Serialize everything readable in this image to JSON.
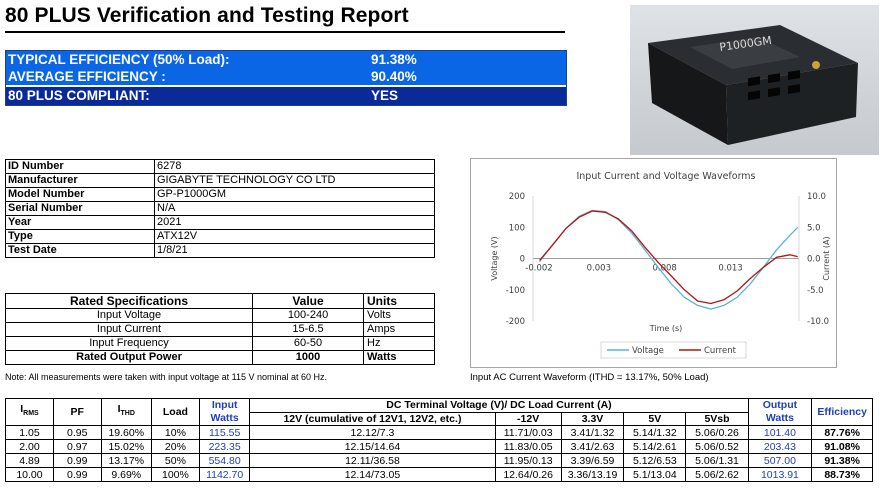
{
  "title": "80 PLUS Verification and Testing Report",
  "summary": {
    "typical_label": "TYPICAL EFFICIENCY (50% Load):",
    "typical_value": "91.38%",
    "average_label": "AVERAGE EFFICIENCY :",
    "average_value": "90.40%",
    "compliant_label": "80 PLUS COMPLIANT:",
    "compliant_value": "YES",
    "colors": {
      "light_blue": "#0b66e6",
      "dark_blue": "#0a2a9a"
    }
  },
  "photo": {
    "icon": "psu-photo",
    "brand_text": "P1000GM"
  },
  "info": [
    {
      "key": "ID Number",
      "value": "6278"
    },
    {
      "key": "Manufacturer",
      "value": "GIGABYTE TECHNOLOGY CO LTD"
    },
    {
      "key": "Model Number",
      "value": "GP-P1000GM"
    },
    {
      "key": "Serial Number",
      "value": "N/A"
    },
    {
      "key": "Year",
      "value": "2021"
    },
    {
      "key": "Type",
      "value": "ATX12V"
    },
    {
      "key": "Test Date",
      "value": "1/8/21"
    }
  ],
  "rated": {
    "headers": [
      "Rated Specifications",
      "Value",
      "Units"
    ],
    "rows": [
      {
        "spec": "Input Voltage",
        "value": "100-240",
        "unit": "Volts"
      },
      {
        "spec": "Input Current",
        "value": "15-6.5",
        "unit": "Amps"
      },
      {
        "spec": "Input Frequency",
        "value": "60-50",
        "unit": "Hz"
      },
      {
        "spec": "Rated Output Power",
        "value": "1000",
        "unit": "Watts"
      }
    ]
  },
  "note": "Note: All measurements were taken with input voltage at 115 V nominal at 60 Hz.",
  "chart_caption": "Input AC Current Waveform (ITHD = 13.17%, 50% Load)",
  "chart_data": {
    "type": "line",
    "title": "Input Current and Voltage Waveforms",
    "xlabel": "Time (s)",
    "ylabel": "Voltage (V)",
    "y2label": "Current (A)",
    "xlim": [
      -0.002,
      0.0182
    ],
    "ylim": [
      -200,
      200
    ],
    "y2lim": [
      -10,
      10
    ],
    "x_ticks": [
      "-0.002",
      "0.003",
      "0.008",
      "0.013"
    ],
    "x_tick_values": [
      -0.002,
      0.003,
      0.008,
      0.013
    ],
    "y_ticks": [
      200,
      100,
      0,
      -100,
      -200
    ],
    "y2_ticks": [
      "10.0",
      "5.0",
      "0.0",
      "-5.0",
      "-10.0"
    ],
    "y2_tick_values": [
      10,
      5,
      0,
      -5,
      -10
    ],
    "legend_position": "bottom",
    "series": [
      {
        "name": "Voltage",
        "color": "#5ab4d6",
        "axis": "left",
        "x": [
          -0.0015,
          -0.0005,
          0.0005,
          0.0015,
          0.0025,
          0.0035,
          0.0045,
          0.0055,
          0.0065,
          0.0075,
          0.0085,
          0.0095,
          0.0105,
          0.0115,
          0.0125,
          0.0135,
          0.0145,
          0.0155,
          0.0165,
          0.0175,
          0.0181
        ],
        "y": [
          -10,
          45,
          96,
          135,
          154,
          150,
          124,
          81,
          28,
          -28,
          -81,
          -124,
          -150,
          -162,
          -150,
          -124,
          -81,
          -28,
          28,
          74,
          100
        ]
      },
      {
        "name": "Current",
        "color": "#b01616",
        "axis": "right",
        "x": [
          -0.0015,
          -0.0005,
          0.0005,
          0.0015,
          0.0025,
          0.0035,
          0.0045,
          0.0055,
          0.0065,
          0.0075,
          0.0085,
          0.0095,
          0.0105,
          0.0115,
          0.0125,
          0.0135,
          0.0145,
          0.0155,
          0.0165,
          0.0175,
          0.0181
        ],
        "y": [
          -0.3,
          2.2,
          4.8,
          6.6,
          7.6,
          7.4,
          6.3,
          4.4,
          1.8,
          -0.6,
          -2.8,
          -5.0,
          -6.8,
          -7.2,
          -6.6,
          -5.2,
          -3.2,
          -1.4,
          0.2,
          0.6,
          0.3
        ]
      }
    ]
  },
  "results": {
    "headers": {
      "irms": "I",
      "irms_sub": "RMS",
      "pf": "PF",
      "ithd": "I",
      "ithd_sub": "THD",
      "load": "Load",
      "input_watts": "Input Watts",
      "dc_group": "DC Terminal Voltage (V)/ DC Load Current (A)",
      "v12": "12V (cumulative of 12V1, 12V2, etc.)",
      "vm12": "-12V",
      "v33": "3.3V",
      "v5": "5V",
      "v5sb": "5Vsb",
      "output_watts": "Output Watts",
      "efficiency": "Efficiency"
    },
    "rows": [
      {
        "irms": "1.05",
        "pf": "0.95",
        "ithd": "19.60%",
        "load": "10%",
        "input": "115.55",
        "v12": "12.12/7.3",
        "vm12": "11.71/0.03",
        "v33": "3.41/1.32",
        "v5": "5.14/1.32",
        "v5sb": "5.06/0.26",
        "output": "101.40",
        "eff": "87.76%"
      },
      {
        "irms": "2.00",
        "pf": "0.97",
        "ithd": "15.02%",
        "load": "20%",
        "input": "223.35",
        "v12": "12.15/14.64",
        "vm12": "11.83/0.05",
        "v33": "3.41/2.63",
        "v5": "5.14/2.61",
        "v5sb": "5.06/0.52",
        "output": "203.43",
        "eff": "91.08%"
      },
      {
        "irms": "4.89",
        "pf": "0.99",
        "ithd": "13.17%",
        "load": "50%",
        "input": "554.80",
        "v12": "12.11/36.58",
        "vm12": "11.95/0.13",
        "v33": "3.39/6.59",
        "v5": "5.12/6.53",
        "v5sb": "5.06/1.31",
        "output": "507.00",
        "eff": "91.38%"
      },
      {
        "irms": "10.00",
        "pf": "0.99",
        "ithd": "9.69%",
        "load": "100%",
        "input": "1142.70",
        "v12": "12.14/73.05",
        "vm12": "12.64/0.26",
        "v33": "3.36/13.19",
        "v5": "5.1/13.04",
        "v5sb": "5.06/2.62",
        "output": "1013.91",
        "eff": "88.73%"
      }
    ]
  }
}
